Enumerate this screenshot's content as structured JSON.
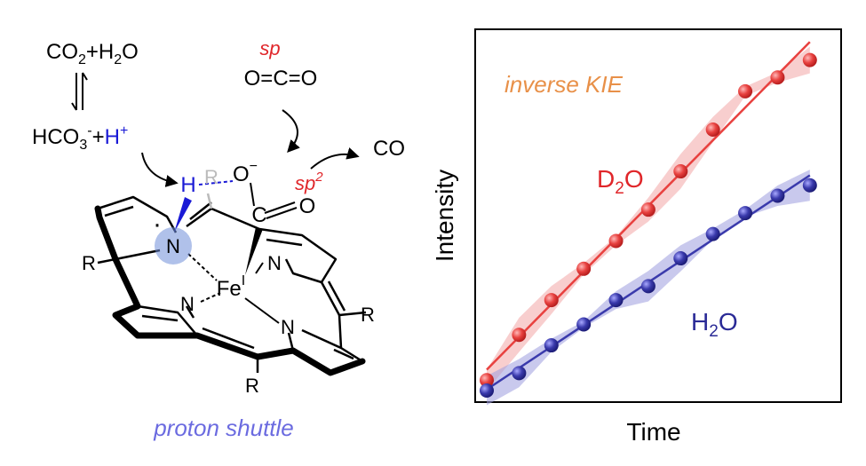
{
  "scheme": {
    "co2": {
      "main": "CO",
      "sub": "2",
      "tail": "+H",
      "sub2": "2",
      "tail2": "O"
    },
    "bicarbonate": {
      "main": "HCO",
      "sub": "3",
      "sup": "-",
      "plus": "+",
      "proton": "H",
      "proton_sup": "+"
    },
    "sp_label": "sp",
    "co2_molecule": "O=C=O",
    "co_product": "CO",
    "sp2_label": {
      "main": "sp",
      "sup": "2"
    },
    "porphyrin": {
      "h": "H",
      "r_grey": "R",
      "o_minus": {
        "main": "O",
        "sup": "−"
      },
      "carbon": "C",
      "oxygen": "O",
      "n_top": "N",
      "n_right": "N",
      "n_left": "N",
      "n_bottom": "N",
      "fe": {
        "main": "Fe",
        "sup": "I"
      },
      "r_left": "R",
      "r_right": "R",
      "r_bottom": "R",
      "radical": "·"
    },
    "caption": "proton shuttle"
  },
  "chart_data": {
    "type": "scatter",
    "xlabel": "Time",
    "ylabel": "Intensity",
    "annotation": "inverse KIE",
    "xlim": [
      0,
      10.5
    ],
    "ylim": [
      0,
      10
    ],
    "series": [
      {
        "name": "D2O",
        "label_main": "D",
        "label_sub": "2",
        "label_tail": "O",
        "color": "#e8413f",
        "band_color": "#f3a6a6",
        "x": [
          0,
          1,
          2,
          3,
          4,
          5,
          6,
          7,
          8,
          9,
          10
        ],
        "y": [
          0.3,
          1.6,
          2.6,
          3.5,
          4.3,
          5.2,
          6.3,
          7.5,
          8.6,
          9.0,
          9.5
        ],
        "band": 0.5
      },
      {
        "name": "H2O",
        "label_main": "H",
        "label_sub": "2",
        "label_tail": "O",
        "color": "#3a3aac",
        "band_color": "#9d9dde",
        "x": [
          0,
          1,
          2,
          3,
          4,
          5,
          6,
          7,
          8,
          9,
          10
        ],
        "y": [
          0.0,
          0.5,
          1.3,
          1.9,
          2.6,
          3.0,
          3.8,
          4.5,
          5.1,
          5.6,
          5.9
        ],
        "band": 0.45
      }
    ]
  }
}
